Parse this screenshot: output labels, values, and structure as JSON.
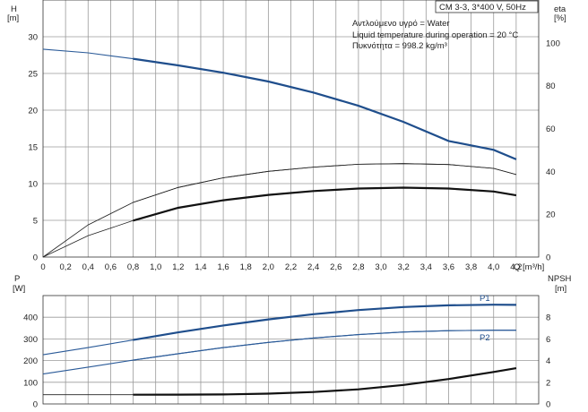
{
  "chart_data": [
    {
      "type": "line",
      "title": "CM 3-3, 3*400 V, 50Hz",
      "notes": [
        "Αντλούμενο υγρό = Water",
        "Liquid temperature during operation = 20 °C",
        "Πυκνότητα = 998.2 kg/m³"
      ],
      "xlabel": "Q [m³/h]",
      "x_ticks": [
        "0",
        "0,2",
        "0,4",
        "0,6",
        "0,8",
        "1,0",
        "1,2",
        "1,4",
        "1,6",
        "1,8",
        "2,0",
        "2,2",
        "2,4",
        "2,6",
        "2,8",
        "3,0",
        "3,2",
        "3,4",
        "3,6",
        "3,8",
        "4,0",
        "4,2"
      ],
      "xlim": [
        0,
        4.4
      ],
      "ylabel_left": "H\n[m]",
      "ylim_left": [
        0,
        35
      ],
      "y_ticks_left": [
        "0",
        "5",
        "10",
        "15",
        "20",
        "25",
        "30"
      ],
      "ylabel_right": "eta\n[%]",
      "ylim_right": [
        0,
        120
      ],
      "y_ticks_right": [
        "0",
        "20",
        "40",
        "60",
        "80",
        "100"
      ],
      "grid": true,
      "series": [
        {
          "axis": "left",
          "color": "#1f4e8c",
          "x": [
            0,
            0.4,
            0.8,
            1.2,
            1.6,
            2.0,
            2.4,
            2.8,
            3.2,
            3.6,
            4.0,
            4.2
          ],
          "y": [
            28.3,
            27.8,
            27.0,
            26.1,
            25.1,
            23.9,
            22.4,
            20.6,
            18.4,
            15.8,
            14.6,
            13.3
          ]
        },
        {
          "axis": "right",
          "color": "#222222",
          "x": [
            0,
            0.4,
            0.8,
            1.2,
            1.6,
            2.0,
            2.4,
            2.8,
            3.2,
            3.6,
            4.0,
            4.2
          ],
          "y": [
            0,
            15,
            25.5,
            32.5,
            37,
            40,
            42,
            43.3,
            43.6,
            43.2,
            41.4,
            38.5
          ]
        },
        {
          "axis": "right",
          "color": "#111111",
          "x": [
            0,
            0.4,
            0.8,
            1.2,
            1.6,
            2.0,
            2.4,
            2.8,
            3.2,
            3.6,
            4.0,
            4.2
          ],
          "y": [
            0,
            10,
            17,
            23,
            26.5,
            29,
            30.8,
            32,
            32.4,
            32,
            30.6,
            28.8
          ]
        }
      ]
    },
    {
      "type": "line",
      "xlim": [
        0,
        4.4
      ],
      "ylabel_left": "P\n[W]",
      "ylim_left": [
        0,
        500
      ],
      "y_ticks_left": [
        "0",
        "100",
        "200",
        "300",
        "400"
      ],
      "ylabel_right": "NPSH\n[m]",
      "ylim_right": [
        0,
        10
      ],
      "y_ticks_right": [
        "0",
        "2",
        "4",
        "6",
        "8"
      ],
      "grid": true,
      "series": [
        {
          "name": "P1",
          "axis": "left",
          "color": "#1f4e8c",
          "x": [
            0,
            0.4,
            0.8,
            1.2,
            1.6,
            2.0,
            2.4,
            2.8,
            3.2,
            3.6,
            4.0,
            4.2
          ],
          "y": [
            227,
            260,
            295,
            330,
            362,
            390,
            414,
            433,
            447,
            455,
            458,
            457
          ]
        },
        {
          "name": "P2",
          "axis": "left",
          "color": "#2a5a98",
          "x": [
            0,
            0.4,
            0.8,
            1.2,
            1.6,
            2.0,
            2.4,
            2.8,
            3.2,
            3.6,
            4.0,
            4.2
          ],
          "y": [
            138,
            170,
            202,
            232,
            260,
            284,
            304,
            320,
            332,
            338,
            340,
            340
          ]
        },
        {
          "axis": "right",
          "color": "#111111",
          "x": [
            0,
            0.4,
            0.8,
            1.2,
            1.6,
            2.0,
            2.4,
            2.8,
            3.2,
            3.6,
            4.0,
            4.2
          ],
          "y": [
            0.85,
            0.85,
            0.85,
            0.86,
            0.88,
            0.95,
            1.1,
            1.35,
            1.75,
            2.3,
            2.95,
            3.3
          ]
        }
      ]
    }
  ]
}
